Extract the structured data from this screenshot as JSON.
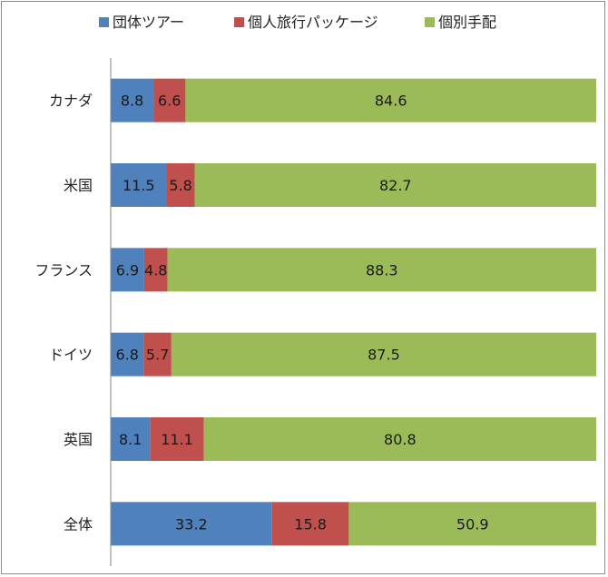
{
  "chart_data": {
    "type": "bar",
    "orientation": "horizontal",
    "stacked": true,
    "percent_stacked": true,
    "categories": [
      "カナダ",
      "米国",
      "フランス",
      "ドイツ",
      "英国",
      "全体"
    ],
    "series": [
      {
        "name": "団体ツアー",
        "color": "#4f81bd",
        "values": [
          8.8,
          11.5,
          6.9,
          6.8,
          8.1,
          33.2
        ]
      },
      {
        "name": "個人旅行パッケージ",
        "color": "#c0504d",
        "values": [
          6.6,
          5.8,
          4.8,
          5.7,
          11.1,
          15.8
        ]
      },
      {
        "name": "個別手配",
        "color": "#9bbb59",
        "values": [
          84.6,
          82.7,
          88.3,
          87.5,
          80.8,
          50.9
        ]
      }
    ],
    "xlim": [
      0,
      100
    ],
    "grid": false,
    "legend_position": "top",
    "data_labels": true,
    "title": "",
    "xlabel": "",
    "ylabel": ""
  }
}
